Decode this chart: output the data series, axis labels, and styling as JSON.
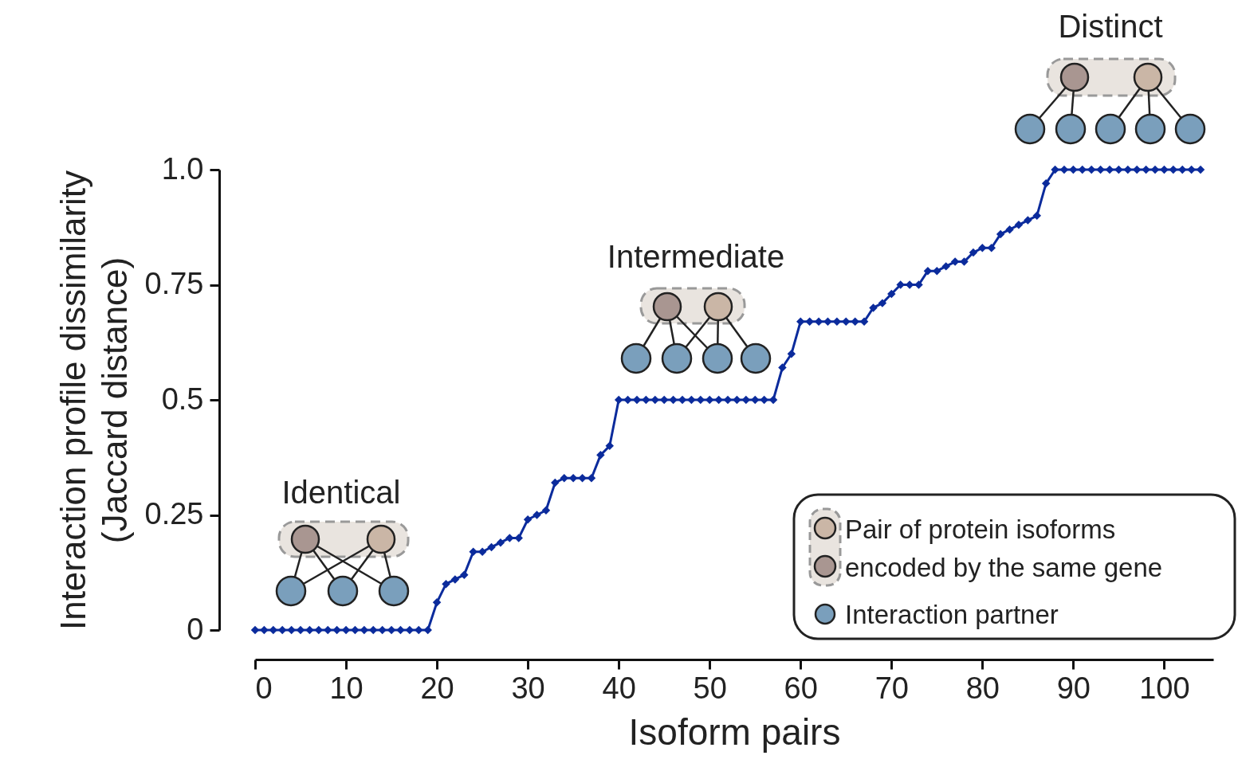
{
  "chart_data": {
    "type": "line",
    "xlabel": "Isoform pairs",
    "ylabel": "Interaction profile dissimilarity\n(Jaccard distance)",
    "x": [
      0,
      1,
      2,
      3,
      4,
      5,
      6,
      7,
      8,
      9,
      10,
      11,
      12,
      13,
      14,
      15,
      16,
      17,
      18,
      19,
      20,
      21,
      22,
      23,
      24,
      25,
      26,
      27,
      28,
      29,
      30,
      31,
      32,
      33,
      34,
      35,
      36,
      37,
      38,
      39,
      40,
      41,
      42,
      43,
      44,
      45,
      46,
      47,
      48,
      49,
      50,
      51,
      52,
      53,
      54,
      55,
      56,
      57,
      58,
      59,
      60,
      61,
      62,
      63,
      64,
      65,
      66,
      67,
      68,
      69,
      70,
      71,
      72,
      73,
      74,
      75,
      76,
      77,
      78,
      79,
      80,
      81,
      82,
      83,
      84,
      85,
      86,
      87,
      88,
      89,
      90,
      91,
      92,
      93,
      94,
      95,
      96,
      97,
      98,
      99,
      100,
      101,
      102,
      103,
      104
    ],
    "series": [
      {
        "color": "#0b2b9c",
        "values": [
          0,
          0,
          0,
          0,
          0,
          0,
          0,
          0,
          0,
          0,
          0,
          0,
          0,
          0,
          0,
          0,
          0,
          0,
          0,
          0,
          0.06,
          0.1,
          0.11,
          0.12,
          0.17,
          0.17,
          0.18,
          0.19,
          0.2,
          0.2,
          0.24,
          0.25,
          0.26,
          0.32,
          0.33,
          0.33,
          0.33,
          0.33,
          0.38,
          0.4,
          0.5,
          0.5,
          0.5,
          0.5,
          0.5,
          0.5,
          0.5,
          0.5,
          0.5,
          0.5,
          0.5,
          0.5,
          0.5,
          0.5,
          0.5,
          0.5,
          0.5,
          0.5,
          0.57,
          0.6,
          0.67,
          0.67,
          0.67,
          0.67,
          0.67,
          0.67,
          0.67,
          0.67,
          0.7,
          0.71,
          0.73,
          0.75,
          0.75,
          0.75,
          0.78,
          0.78,
          0.79,
          0.8,
          0.8,
          0.82,
          0.83,
          0.83,
          0.86,
          0.87,
          0.88,
          0.89,
          0.9,
          0.97,
          1,
          1,
          1,
          1,
          1,
          1,
          1,
          1,
          1,
          1,
          1,
          1,
          1,
          1,
          1,
          1,
          1
        ]
      }
    ],
    "xlim": [
      0,
      105.4
    ],
    "ylim": [
      0,
      1
    ],
    "xticks": [
      0,
      10,
      20,
      30,
      40,
      50,
      60,
      70,
      80,
      90,
      100
    ],
    "yticks": [
      0,
      0.25,
      0.5,
      0.75,
      {
        "value": 1,
        "label": "1.0"
      }
    ],
    "marker": "diamond",
    "line_style": "solid",
    "annotations": [
      "Identical",
      "Intermediate",
      "Distinct",
      "Pair of protein isoforms",
      "encoded by the same gene",
      "Interaction partner"
    ]
  }
}
